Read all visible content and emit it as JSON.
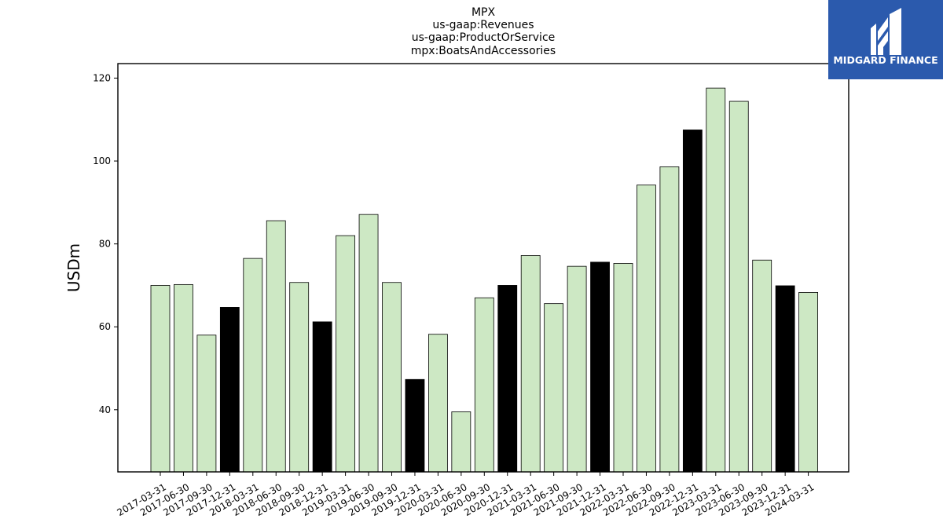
{
  "logo": {
    "text": "MIDGARD FINANCE",
    "bg_color": "#2b5aad"
  },
  "chart_data": {
    "type": "bar",
    "title_lines": [
      "MPX",
      "us-gaap:Revenues",
      "us-gaap:ProductOrService",
      "mpx:BoatsAndAccessories"
    ],
    "xlabel": "",
    "ylabel": "USDm",
    "ylim": [
      25,
      123.5
    ],
    "yticks": [
      40,
      60,
      80,
      100,
      120
    ],
    "grid": false,
    "colors": {
      "quarter": "#cde8c4",
      "year_end": "#000000",
      "edge": "#000000"
    },
    "categories": [
      "2017-03-31",
      "2017-06-30",
      "2017-09-30",
      "2017-12-31",
      "2018-03-31",
      "2018-06-30",
      "2018-09-30",
      "2018-12-31",
      "2019-03-31",
      "2019-06-30",
      "2019-09-30",
      "2019-12-31",
      "2020-03-31",
      "2020-06-30",
      "2020-09-30",
      "2020-12-31",
      "2021-03-31",
      "2021-06-30",
      "2021-09-30",
      "2021-12-31",
      "2022-03-31",
      "2022-06-30",
      "2022-09-30",
      "2022-12-31",
      "2023-03-31",
      "2023-06-30",
      "2023-09-30",
      "2023-12-31",
      "2024-03-31"
    ],
    "values": [
      70.0,
      70.2,
      58.0,
      64.7,
      76.5,
      85.6,
      70.7,
      61.2,
      82.0,
      87.1,
      70.7,
      47.3,
      58.2,
      39.5,
      67.0,
      70.0,
      77.2,
      65.6,
      74.6,
      75.6,
      75.3,
      94.2,
      98.6,
      107.5,
      117.6,
      114.4,
      76.1,
      69.9,
      68.3
    ]
  }
}
